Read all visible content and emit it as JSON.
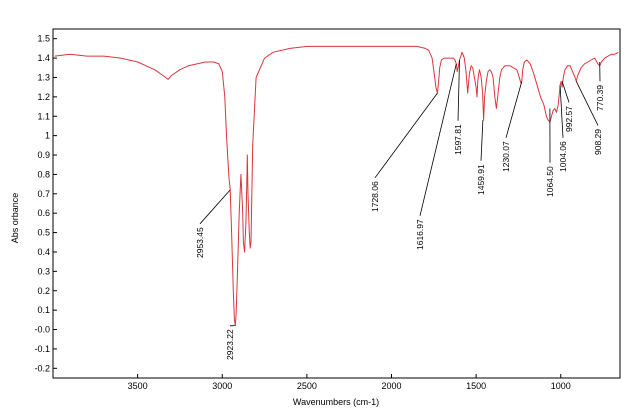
{
  "chart_data": {
    "type": "line",
    "title": "",
    "xlabel": "Wavenumbers (cm-1)",
    "ylabel": "Abs orbance",
    "xlim": [
      4000,
      650
    ],
    "x_reversed": true,
    "ylim": [
      -0.25,
      1.55
    ],
    "x_ticks": [
      3500,
      3000,
      2500,
      2000,
      1500,
      1000
    ],
    "x_tick_labels": [
      "3500",
      "3000",
      "2500",
      "2000",
      "1500",
      "1000"
    ],
    "y_ticks": [
      -0.2,
      -0.1,
      0.0,
      0.1,
      0.2,
      0.3,
      0.4,
      0.5,
      0.6,
      0.7,
      0.8,
      0.9,
      1.0,
      1.1,
      1.2,
      1.3,
      1.4,
      1.5
    ],
    "y_tick_labels": [
      "-0.2",
      "-0.1",
      "-0.0",
      "0.1",
      "0.2",
      "0.3",
      "0.4",
      "0.5",
      "0.6",
      "0.7",
      "0.8",
      "0.9",
      "1",
      "1.1",
      "1.2",
      "1.3",
      "1.4",
      "1.5"
    ],
    "grid": false,
    "line_color": "#d9363e",
    "series": [
      {
        "x": [
          3990,
          3900,
          3800,
          3700,
          3600,
          3500,
          3450,
          3400,
          3350,
          3320,
          3300,
          3250,
          3200,
          3150,
          3100,
          3050,
          3020,
          3000,
          2985,
          2975,
          2965,
          2960,
          2955,
          2953,
          2945,
          2935,
          2928,
          2923,
          2918,
          2910,
          2900,
          2890,
          2880,
          2875,
          2868,
          2860,
          2855,
          2852,
          2848,
          2840,
          2835,
          2830,
          2820,
          2800,
          2750,
          2700,
          2600,
          2500,
          2400,
          2300,
          2200,
          2100,
          2000,
          1900,
          1850,
          1800,
          1780,
          1760,
          1745,
          1738,
          1732,
          1728,
          1722,
          1715,
          1705,
          1690,
          1670,
          1650,
          1635,
          1625,
          1617,
          1612,
          1605,
          1598,
          1590,
          1584,
          1578,
          1570,
          1560,
          1550,
          1540,
          1530,
          1520,
          1510,
          1500,
          1495,
          1490,
          1485,
          1480,
          1470,
          1462,
          1456,
          1450,
          1440,
          1430,
          1420,
          1410,
          1400,
          1390,
          1380,
          1370,
          1360,
          1350,
          1330,
          1300,
          1280,
          1260,
          1245,
          1235,
          1230,
          1225,
          1215,
          1200,
          1180,
          1160,
          1140,
          1120,
          1100,
          1085,
          1075,
          1064,
          1055,
          1045,
          1035,
          1025,
          1015,
          1008,
          1004,
          998,
          992,
          985,
          975,
          960,
          945,
          930,
          915,
          908,
          900,
          880,
          860,
          840,
          820,
          800,
          780,
          770,
          760,
          740,
          720,
          700,
          680,
          660
        ],
        "y": [
          1.41,
          1.42,
          1.41,
          1.41,
          1.4,
          1.38,
          1.36,
          1.34,
          1.31,
          1.29,
          1.31,
          1.34,
          1.36,
          1.37,
          1.38,
          1.38,
          1.37,
          1.33,
          1.2,
          1.0,
          0.85,
          0.78,
          0.74,
          0.72,
          0.5,
          0.2,
          0.05,
          0.02,
          0.08,
          0.3,
          0.6,
          0.8,
          0.62,
          0.45,
          0.4,
          0.55,
          0.75,
          0.9,
          0.7,
          0.5,
          0.42,
          0.45,
          0.95,
          1.3,
          1.4,
          1.43,
          1.45,
          1.46,
          1.46,
          1.46,
          1.46,
          1.46,
          1.46,
          1.46,
          1.46,
          1.45,
          1.44,
          1.4,
          1.3,
          1.25,
          1.23,
          1.22,
          1.28,
          1.35,
          1.39,
          1.4,
          1.4,
          1.4,
          1.4,
          1.39,
          1.37,
          1.33,
          1.36,
          1.39,
          1.41,
          1.43,
          1.42,
          1.4,
          1.33,
          1.22,
          1.32,
          1.36,
          1.35,
          1.3,
          1.25,
          1.2,
          1.28,
          1.32,
          1.34,
          1.3,
          1.22,
          1.08,
          1.2,
          1.28,
          1.33,
          1.34,
          1.33,
          1.3,
          1.2,
          1.14,
          1.22,
          1.3,
          1.34,
          1.36,
          1.36,
          1.35,
          1.34,
          1.3,
          1.27,
          1.28,
          1.34,
          1.38,
          1.39,
          1.37,
          1.32,
          1.26,
          1.2,
          1.16,
          1.1,
          1.08,
          1.07,
          1.1,
          1.13,
          1.14,
          1.12,
          1.16,
          1.22,
          1.26,
          1.28,
          1.25,
          1.3,
          1.34,
          1.36,
          1.36,
          1.33,
          1.3,
          1.28,
          1.31,
          1.35,
          1.37,
          1.38,
          1.39,
          1.4,
          1.37,
          1.36,
          1.38,
          1.4,
          1.41,
          1.42,
          1.42,
          1.43
        ]
      }
    ],
    "peak_labels": [
      {
        "text": "2953.45",
        "x": 2953,
        "y": 0.72
      },
      {
        "text": "2923.22",
        "x": 2923,
        "y": 0.02
      },
      {
        "text": "1728.06",
        "x": 1728,
        "y": 1.22
      },
      {
        "text": "1616.97",
        "x": 1617,
        "y": 1.37
      },
      {
        "text": "1597.81",
        "x": 1598,
        "y": 1.39
      },
      {
        "text": "1459.91",
        "x": 1460,
        "y": 1.08
      },
      {
        "text": "1230.07",
        "x": 1230,
        "y": 1.28
      },
      {
        "text": "1064.50",
        "x": 1064,
        "y": 1.14
      },
      {
        "text": "1004.06",
        "x": 1004,
        "y": 1.26
      },
      {
        "text": "992.57",
        "x": 992,
        "y": 1.28
      },
      {
        "text": "908.29",
        "x": 908,
        "y": 1.28
      },
      {
        "text": "770.39",
        "x": 770,
        "y": 1.38
      }
    ]
  }
}
